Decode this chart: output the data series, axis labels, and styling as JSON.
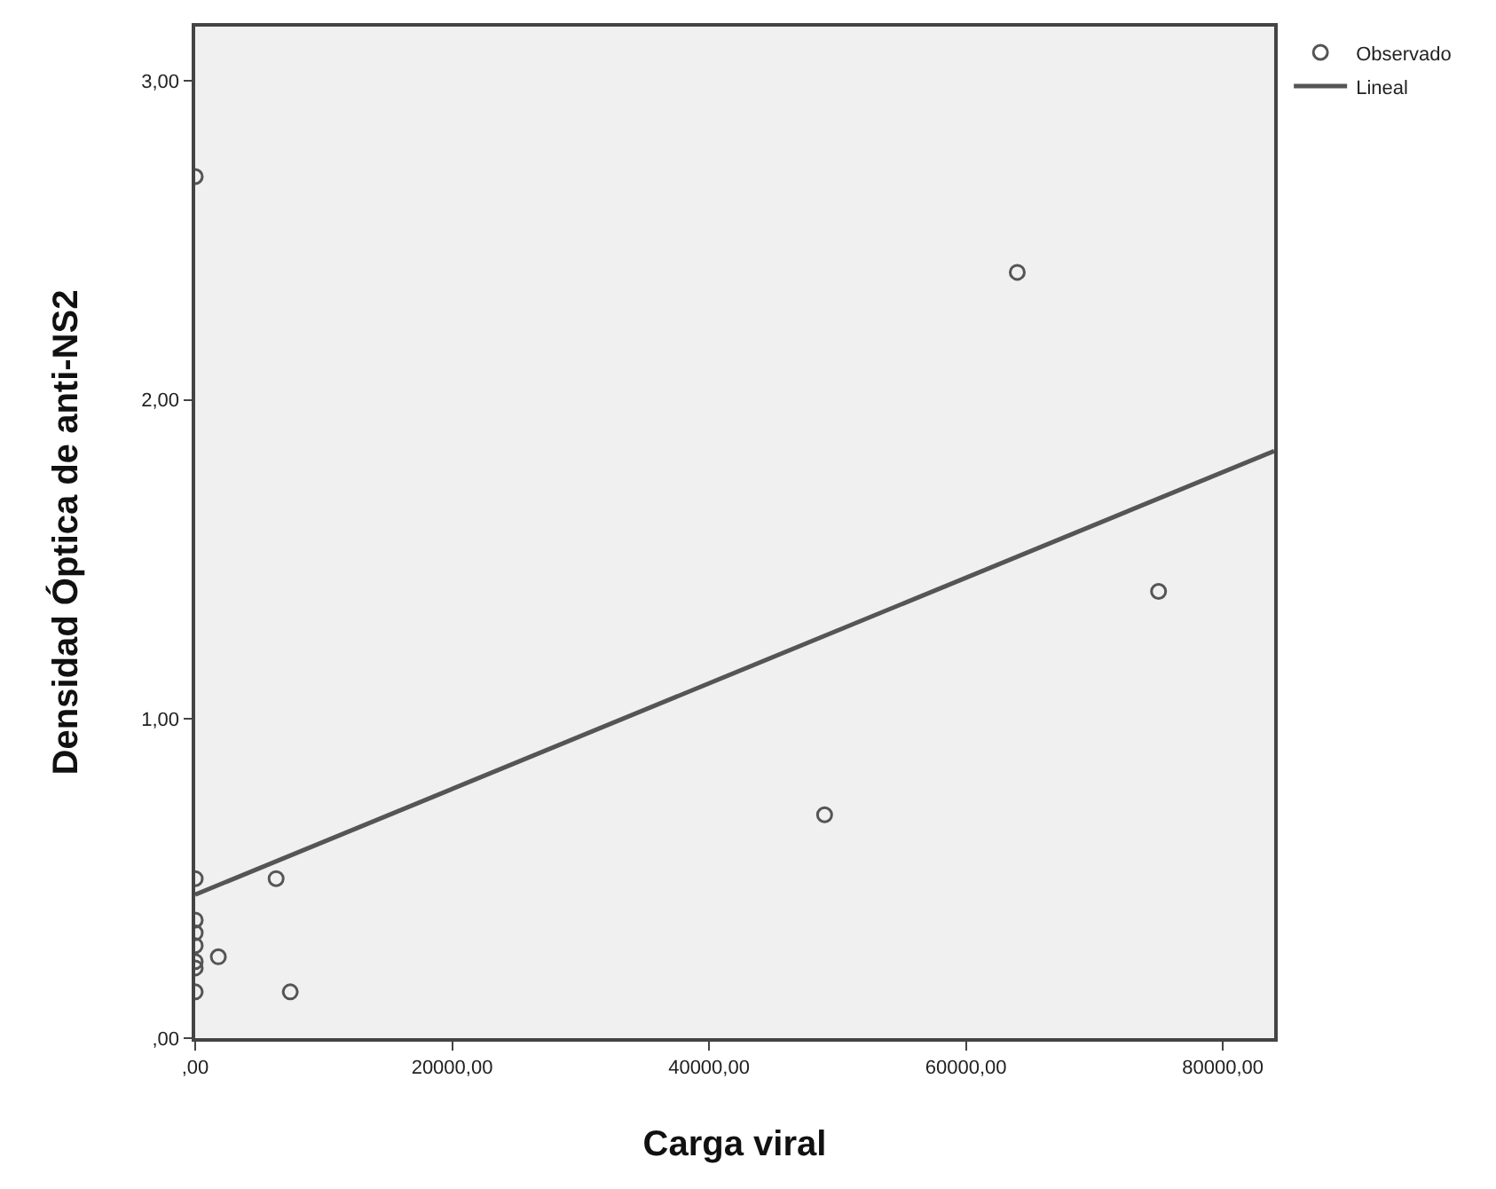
{
  "chart_data": {
    "type": "scatter",
    "xlabel": "Carga viral",
    "ylabel": "Densidad Óptica de anti-NS2",
    "xlim": [
      0,
      84000
    ],
    "ylim": [
      0,
      3.17
    ],
    "xticks": [
      {
        "value": 0,
        "label": ",00"
      },
      {
        "value": 20000,
        "label": "20000,00"
      },
      {
        "value": 40000,
        "label": "40000,00"
      },
      {
        "value": 60000,
        "label": "60000,00"
      },
      {
        "value": 80000,
        "label": "80000,00"
      }
    ],
    "yticks": [
      {
        "value": 0,
        "label": ",00"
      },
      {
        "value": 1,
        "label": "1,00"
      },
      {
        "value": 2,
        "label": "2,00"
      },
      {
        "value": 3,
        "label": "3,00"
      }
    ],
    "grid": false,
    "legend": "top right",
    "series": [
      {
        "name": "Observado",
        "type": "scatter",
        "marker": "circle",
        "color": "#555555",
        "x": [
          0,
          64000,
          75000,
          49000,
          6300,
          7400,
          1800,
          0,
          0,
          0,
          0,
          0,
          0,
          0
        ],
        "values": [
          2.7,
          2.4,
          1.4,
          0.7,
          0.5,
          0.145,
          0.255,
          0.5,
          0.37,
          0.33,
          0.29,
          0.24,
          0.22,
          0.145
        ]
      },
      {
        "name": "Lineal",
        "type": "line",
        "line_style": "solid",
        "color": "#555555",
        "x": [
          0,
          84000
        ],
        "values": [
          0.45,
          1.84
        ]
      }
    ]
  }
}
